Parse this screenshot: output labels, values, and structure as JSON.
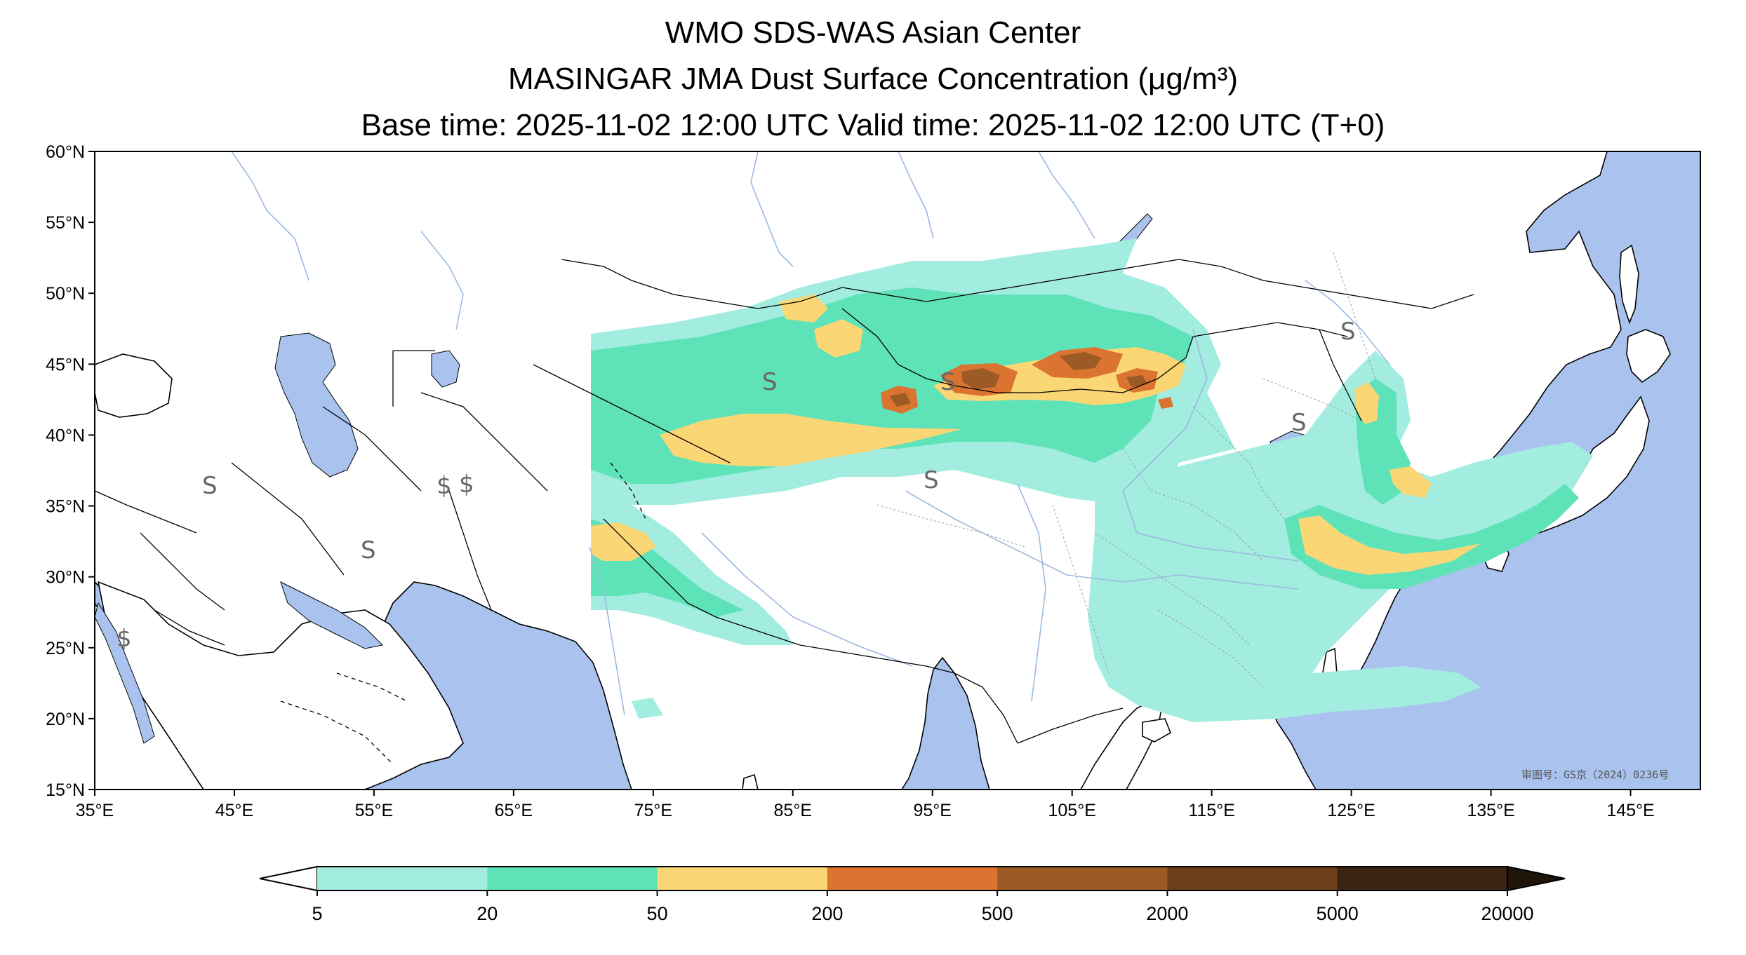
{
  "title": {
    "line1": "WMO SDS-WAS Asian Center",
    "line2": "MASINGAR JMA Dust Surface Concentration (μg/m³)",
    "line3": "Base time: 2025-11-02 12:00 UTC Valid time: 2025-11-02 12:00 UTC (T+0)"
  },
  "map": {
    "lon_range": [
      35,
      150
    ],
    "lat_range": [
      15,
      60
    ],
    "lon_ticks": [
      "35°E",
      "45°E",
      "55°E",
      "65°E",
      "75°E",
      "85°E",
      "95°E",
      "105°E",
      "115°E",
      "125°E",
      "135°E",
      "145°E"
    ],
    "lat_ticks": [
      "60°N",
      "55°N",
      "50°N",
      "45°N",
      "40°N",
      "35°N",
      "30°N",
      "25°N",
      "20°N",
      "15°N"
    ],
    "lon_values": [
      35,
      45,
      55,
      65,
      75,
      85,
      95,
      105,
      115,
      125,
      135,
      145
    ],
    "lat_values": [
      60,
      55,
      50,
      45,
      40,
      35,
      30,
      25,
      20,
      15
    ],
    "credit": "审图号：GS京（2024）0236号",
    "colors": {
      "ocean": "#aac3ee",
      "land": "#ffffff"
    }
  },
  "colorbar": {
    "labels": [
      "5",
      "20",
      "50",
      "200",
      "500",
      "2000",
      "5000",
      "20000"
    ],
    "colors": [
      "#a3ece0",
      "#5ee3b8",
      "#fbd674",
      "#db7430",
      "#9c5a25",
      "#6b4019",
      "#3a2514"
    ],
    "under_color": "#ffffff",
    "over_color": "#1f150b"
  }
}
